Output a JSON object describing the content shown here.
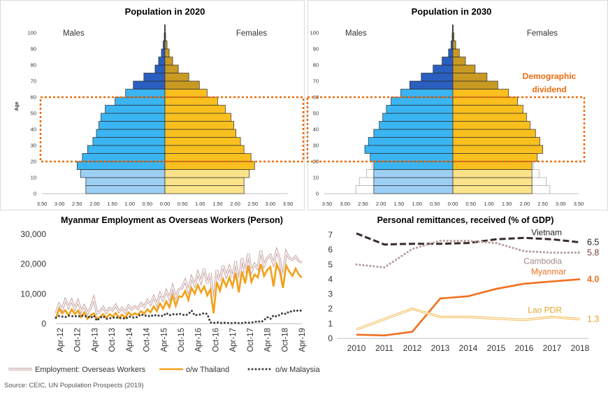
{
  "source": "Source: CEIC, UN Population Prospects (2019)",
  "chart_data": [
    {
      "type": "bar",
      "orientation": "horizontal-pyramid",
      "title": "Population in 2020",
      "left_label": "Males",
      "right_label": "Females",
      "ylabel": "Age",
      "y_ticks": [
        "0",
        "10",
        "20",
        "30",
        "40",
        "50",
        "60",
        "70",
        "80",
        "90",
        "100"
      ],
      "x_ticks": [
        "3.50",
        "3.00",
        "2.50",
        "2.00",
        "1.50",
        "1.00",
        "0.50",
        "0.00",
        "0.50",
        "1.00",
        "1.50",
        "2.00",
        "2.50",
        "3.00",
        "3.50"
      ],
      "xlim": [
        -3.5,
        3.5
      ],
      "age_groups": [
        "0-4",
        "5-9",
        "10-14",
        "15-19",
        "20-24",
        "25-29",
        "30-34",
        "35-39",
        "40-44",
        "45-49",
        "50-54",
        "55-59",
        "60-64",
        "65-69",
        "70-74",
        "75-79",
        "80-84",
        "85-89",
        "90-94",
        "95-99",
        "100+"
      ],
      "series": [
        {
          "name": "Males",
          "values": [
            2.25,
            2.25,
            2.4,
            2.5,
            2.35,
            2.2,
            2.05,
            1.95,
            1.88,
            1.82,
            1.7,
            1.42,
            1.12,
            0.9,
            0.6,
            0.28,
            0.18,
            0.1,
            0.05,
            0.02,
            0.01
          ]
        },
        {
          "name": "Females",
          "values": [
            2.25,
            2.25,
            2.4,
            2.55,
            2.45,
            2.25,
            2.15,
            2.02,
            1.96,
            1.88,
            1.72,
            1.5,
            1.2,
            0.98,
            0.68,
            0.38,
            0.22,
            0.12,
            0.06,
            0.02,
            0.01
          ]
        }
      ],
      "colors": {
        "male_young": "#9dcff5",
        "male_working": "#3ab4f2",
        "male_old": "#2a5fbf",
        "female_young": "#fbe38a",
        "female_working": "#f9bf1e",
        "female_old": "#c99a22"
      },
      "highlight": {
        "range": [
          20,
          60
        ]
      }
    },
    {
      "type": "bar",
      "orientation": "horizontal-pyramid",
      "title": "Population in 2030",
      "left_label": "Males",
      "right_label": "Females",
      "annotation": "Demographic dividend",
      "y_ticks": [
        "0",
        "10",
        "20",
        "30",
        "40",
        "50",
        "60",
        "70",
        "80",
        "90",
        "100"
      ],
      "x_ticks": [
        "3.50",
        "3.00",
        "2.50",
        "2.00",
        "1.50",
        "1.00",
        "0.50",
        "0.00",
        "0.50",
        "1.00",
        "1.50",
        "2.00",
        "2.50",
        "3.00",
        "3.50"
      ],
      "xlim": [
        -3.5,
        3.5
      ],
      "age_groups": [
        "0-4",
        "5-9",
        "10-14",
        "15-19",
        "20-24",
        "25-29",
        "30-34",
        "35-39",
        "40-44",
        "45-49",
        "50-54",
        "55-59",
        "60-64",
        "65-69",
        "70-74",
        "75-79",
        "80-84",
        "85-89",
        "90-94",
        "95-99",
        "100+"
      ],
      "series": [
        {
          "name": "Males",
          "values": [
            2.2,
            2.2,
            2.2,
            2.2,
            2.3,
            2.45,
            2.35,
            2.2,
            2.05,
            1.95,
            1.85,
            1.72,
            1.45,
            1.2,
            0.88,
            0.55,
            0.3,
            0.12,
            0.05,
            0.02,
            0.01
          ]
        },
        {
          "name": "Females",
          "values": [
            2.2,
            2.2,
            2.2,
            2.2,
            2.35,
            2.5,
            2.42,
            2.3,
            2.15,
            2.05,
            1.95,
            1.8,
            1.55,
            1.25,
            0.95,
            0.62,
            0.35,
            0.18,
            0.08,
            0.03,
            0.01
          ]
        },
        {
          "name": "Males 2020 outline",
          "values": [
            2.7,
            2.6,
            2.4,
            2.25
          ]
        },
        {
          "name": "Females 2020 outline",
          "values": [
            2.7,
            2.6,
            2.4,
            2.25
          ]
        }
      ],
      "highlight": {
        "range": [
          20,
          60
        ]
      }
    },
    {
      "type": "line",
      "title": "Myanmar Employment as Overseas Workers (Person)",
      "x_ticks": [
        "Apr-12",
        "Oct-12",
        "Apr-13",
        "Oct-13",
        "Apr-14",
        "Oct-14",
        "Apr-15",
        "Oct-15",
        "Apr-16",
        "Oct-16",
        "Apr-17",
        "Oct-17",
        "Apr-18",
        "Oct-18",
        "Apr-19"
      ],
      "y_ticks": [
        "0",
        "10,000",
        "20,000",
        "30,000"
      ],
      "ylim": [
        0,
        30000
      ],
      "series": [
        {
          "name": "Employment: Overseas Workers",
          "color": "#c9a6a6",
          "style": "double",
          "values": [
            3500,
            6500,
            4800,
            8000,
            5500,
            7800,
            5000,
            7600,
            4200,
            6000,
            3500,
            5200,
            8500,
            3500,
            4200,
            5500,
            3800,
            5200,
            4500,
            6200,
            4000,
            5200,
            3800,
            6000,
            4800,
            5800,
            5000,
            6800,
            5800,
            7800,
            6500,
            9000,
            6500,
            10000,
            8000,
            11000,
            8500,
            12500,
            9000,
            11500,
            12000,
            14500,
            11000,
            15500,
            13000,
            17000,
            14000,
            18500,
            13500,
            17000,
            6500,
            18000,
            14500,
            19500,
            16000,
            19000,
            15500,
            21000,
            13500,
            22000,
            17000,
            23500,
            17500,
            20000,
            18500,
            24500,
            19500,
            22000,
            23000,
            20000,
            24500,
            21500,
            15000,
            24000,
            22000,
            21500,
            22500,
            21000,
            20500
          ]
        },
        {
          "name": "o/w Thailand",
          "color": "#f2a019",
          "style": "solid",
          "values": [
            1800,
            5000,
            3500,
            4500,
            2800,
            4800,
            3200,
            4400,
            2200,
            3800,
            1600,
            2800,
            3500,
            1600,
            2300,
            3200,
            2000,
            3200,
            2400,
            3600,
            2000,
            3000,
            2000,
            3800,
            2800,
            3500,
            3000,
            4200,
            3400,
            4800,
            3800,
            5800,
            4200,
            6800,
            5000,
            7500,
            5500,
            9500,
            6000,
            9200,
            9000,
            11000,
            8000,
            12000,
            10000,
            13000,
            10500,
            12500,
            9500,
            11500,
            3500,
            14000,
            11000,
            15000,
            12500,
            15500,
            12500,
            17000,
            10500,
            17500,
            13500,
            19500,
            14000,
            16500,
            15500,
            20000,
            16000,
            18000,
            19000,
            12500,
            20000,
            17500,
            12000,
            19500,
            17500,
            16000,
            18500,
            16500,
            15500
          ]
        },
        {
          "name": "o/w Malaysia",
          "color": "#3c3c3c",
          "style": "dotted",
          "values": [
            2000,
            2600,
            2400,
            2200,
            2700,
            2500,
            2600,
            2300,
            2800,
            2400,
            2600,
            1900,
            2700,
            1000,
            2000,
            2500,
            1600,
            1800,
            2000,
            2200,
            1800,
            2000,
            1600,
            2400,
            2200,
            2000,
            2300,
            3200,
            2600,
            2800,
            2400,
            3000,
            2600,
            2800,
            2500,
            3600,
            2800,
            3200,
            3000,
            3400,
            3100,
            2800,
            3200,
            4400,
            2800,
            3000,
            3100,
            3600,
            3200,
            400,
            200,
            500,
            200,
            300,
            300,
            200,
            200,
            300,
            200,
            200,
            400,
            300,
            400,
            500,
            900,
            500,
            1200,
            2200,
            1600,
            2800,
            2400,
            3000,
            3600,
            3200,
            4200,
            4000,
            4600,
            4200,
            4500
          ]
        }
      ]
    },
    {
      "type": "line",
      "title": "Personal remittances, received (% of GDP)",
      "categories": [
        "2010",
        "2011",
        "2012",
        "2013",
        "2014",
        "2015",
        "2016",
        "2017",
        "2018"
      ],
      "y_ticks": [
        "0",
        "1",
        "2",
        "3",
        "4",
        "5",
        "6",
        "7"
      ],
      "ylim": [
        0,
        7
      ],
      "series": [
        {
          "name": "Vietnam",
          "color": "#3a2a2a",
          "style": "dashed",
          "end_label": "6.5",
          "values": [
            7.1,
            6.35,
            6.4,
            6.4,
            6.45,
            6.7,
            6.8,
            6.7,
            6.5
          ]
        },
        {
          "name": "Cambodia",
          "color": "#b8a0a0",
          "style": "dotted",
          "end_label": "5.8",
          "values": [
            5.0,
            4.8,
            6.05,
            6.6,
            6.6,
            6.45,
            5.9,
            5.8,
            5.8
          ]
        },
        {
          "name": "Myanmar",
          "color": "#ee7020",
          "style": "solid",
          "end_label": "4.0",
          "values": [
            0.25,
            0.2,
            0.45,
            2.7,
            2.85,
            3.35,
            3.7,
            3.85,
            4.0
          ]
        },
        {
          "name": "Lao PDR",
          "color": "#f2c060",
          "style": "double",
          "end_label": "1.3",
          "values": [
            0.6,
            1.3,
            2.0,
            1.45,
            1.45,
            1.35,
            1.25,
            1.45,
            1.3
          ]
        }
      ]
    }
  ]
}
